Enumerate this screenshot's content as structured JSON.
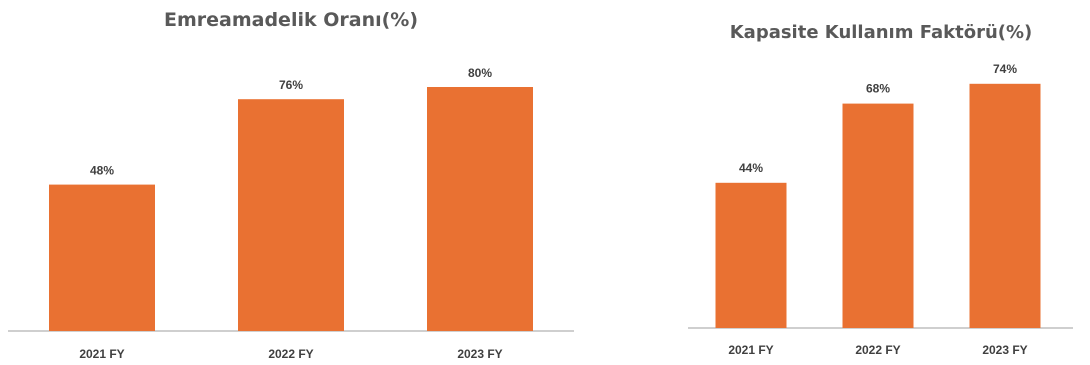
{
  "chart_data": [
    {
      "type": "bar",
      "title": "Emreamadelik Oranı(%)",
      "categories": [
        "2021 FY",
        "2022 FY",
        "2023 FY"
      ],
      "values": [
        48,
        76,
        80
      ],
      "value_labels": [
        "48%",
        "76%",
        "80%"
      ],
      "ylim": [
        0,
        100
      ],
      "grid": false,
      "legend": "none",
      "bar_color": "#E97132",
      "axis_color": "#BFBFBF"
    },
    {
      "type": "bar",
      "title": "Kapasite Kullanım Faktörü(%)",
      "categories": [
        "2021 FY",
        "2022 FY",
        "2023 FY"
      ],
      "values": [
        44,
        68,
        74
      ],
      "value_labels": [
        "44%",
        "68%",
        "74%"
      ],
      "ylim": [
        0,
        100
      ],
      "grid": false,
      "legend": "none",
      "bar_color": "#E97132",
      "axis_color": "#BFBFBF"
    }
  ]
}
